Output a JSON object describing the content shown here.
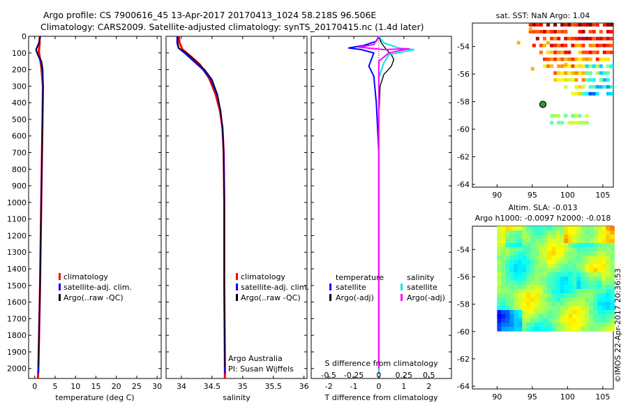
{
  "header": {
    "line1": "Argo profile: CS 7900616_45 13-Apr-2017 20170413_1024 58.218S 96.506E",
    "line2": "Climatology: CARS2009. Satellite-adjusted climatology: synTS_20170415.nc (1.4d later)"
  },
  "depth_ticks": [
    0,
    100,
    200,
    300,
    400,
    500,
    600,
    700,
    800,
    900,
    1000,
    1100,
    1200,
    1300,
    1400,
    1500,
    1600,
    1700,
    1800,
    1900,
    2000
  ],
  "colors": {
    "climatology": "#ff0000",
    "satellite": "#0000ff",
    "argo": "#000000",
    "sal_satellite": "#00e5e5",
    "sal_argo": "#ff00ff"
  },
  "chart_data": [
    {
      "type": "line",
      "xlabel": "temperature (deg C)",
      "xlim": [
        -1.5,
        31
      ],
      "ylim": [
        2060,
        0
      ],
      "xticks": [
        0,
        5,
        10,
        15,
        20,
        25,
        30
      ],
      "legend": [
        "climatology",
        "satellite-adj. clim.",
        "Argo(..raw -QC)"
      ],
      "series": [
        {
          "name": "climatology",
          "points": [
            [
              1.2,
              0
            ],
            [
              1.2,
              50
            ],
            [
              1.0,
              90
            ],
            [
              1.6,
              180
            ],
            [
              2.0,
              300
            ],
            [
              1.9,
              500
            ],
            [
              1.6,
              1000
            ],
            [
              1.3,
              1500
            ],
            [
              0.9,
              2000
            ],
            [
              0.8,
              2060
            ]
          ]
        },
        {
          "name": "satellite-adj. clim.",
          "points": [
            [
              1.4,
              0
            ],
            [
              1.0,
              40
            ],
            [
              0.3,
              80
            ],
            [
              0.7,
              110
            ],
            [
              1.5,
              150
            ],
            [
              1.9,
              220
            ],
            [
              2.0,
              300
            ],
            [
              1.9,
              500
            ],
            [
              1.6,
              1000
            ],
            [
              1.3,
              1500
            ],
            [
              0.9,
              2000
            ],
            [
              0.9,
              2030
            ]
          ]
        },
        {
          "name": "Argo(..raw -QC)",
          "points": [
            [
              1.3,
              0
            ],
            [
              1.1,
              40
            ],
            [
              0.4,
              80
            ],
            [
              0.8,
              110
            ],
            [
              1.7,
              150
            ],
            [
              2.0,
              200
            ],
            [
              2.1,
              300
            ],
            [
              1.9,
              500
            ],
            [
              1.6,
              1000
            ],
            [
              1.3,
              1500
            ],
            [
              0.9,
              1990
            ]
          ]
        }
      ]
    },
    {
      "type": "line",
      "xlabel": "salinity",
      "xlim": [
        33.75,
        36.05
      ],
      "ylim": [
        2060,
        0
      ],
      "xticks": [
        34,
        34.5,
        35,
        35.5,
        36
      ],
      "legend": [
        "climatology",
        "satellite-adj. clim.",
        "Argo(..raw -QC)"
      ],
      "annotation": [
        "Argo Australia",
        "PI: Susan Wijffels"
      ],
      "series": [
        {
          "name": "climatology",
          "points": [
            [
              33.96,
              0
            ],
            [
              33.97,
              40
            ],
            [
              34.02,
              80
            ],
            [
              34.15,
              120
            ],
            [
              34.3,
              170
            ],
            [
              34.45,
              250
            ],
            [
              34.56,
              350
            ],
            [
              34.63,
              450
            ],
            [
              34.67,
              550
            ],
            [
              34.69,
              700
            ],
            [
              34.7,
              1000
            ],
            [
              34.7,
              1500
            ],
            [
              34.71,
              2000
            ],
            [
              34.71,
              2060
            ]
          ]
        },
        {
          "name": "satellite-adj. clim.",
          "points": [
            [
              33.93,
              0
            ],
            [
              33.93,
              40
            ],
            [
              33.95,
              70
            ],
            [
              34.05,
              100
            ],
            [
              34.2,
              150
            ],
            [
              34.35,
              200
            ],
            [
              34.48,
              260
            ],
            [
              34.58,
              350
            ],
            [
              34.64,
              450
            ],
            [
              34.67,
              550
            ],
            [
              34.69,
              700
            ],
            [
              34.7,
              1000
            ],
            [
              34.7,
              1500
            ],
            [
              34.71,
              2000
            ],
            [
              34.71,
              2030
            ]
          ]
        },
        {
          "name": "Argo(..raw -QC)",
          "points": [
            [
              33.94,
              0
            ],
            [
              33.94,
              40
            ],
            [
              33.96,
              70
            ],
            [
              34.08,
              100
            ],
            [
              34.24,
              150
            ],
            [
              34.38,
              200
            ],
            [
              34.5,
              260
            ],
            [
              34.59,
              350
            ],
            [
              34.64,
              450
            ],
            [
              34.68,
              600
            ],
            [
              34.7,
              1000
            ],
            [
              34.7,
              1500
            ],
            [
              34.71,
              1990
            ]
          ]
        }
      ]
    },
    {
      "type": "line",
      "xlabel": "T difference from climatology",
      "xlabel_top": "S difference from climatology",
      "xlim": [
        -2.7,
        2.9
      ],
      "ylim": [
        2060,
        0
      ],
      "xticks": [
        -2,
        -1,
        0,
        1,
        2
      ],
      "xticks_top": [
        "-0.5",
        "-0.25",
        "0",
        "0.25",
        "0.5"
      ],
      "legend_left_title": "temperature",
      "legend_right_title": "salinity",
      "legend_left": [
        "satellite",
        "Argo(-adj)"
      ],
      "legend_right": [
        "satellite",
        "Argo(-adj)"
      ],
      "series": [
        {
          "name": "T satellite",
          "points": [
            [
              0,
              0
            ],
            [
              -0.1,
              30
            ],
            [
              -0.6,
              55
            ],
            [
              -1.2,
              70
            ],
            [
              -0.7,
              80
            ],
            [
              -0.2,
              100
            ],
            [
              -0.3,
              140
            ],
            [
              -0.4,
              180
            ],
            [
              -0.2,
              240
            ],
            [
              -0.1,
              400
            ],
            [
              0,
              700
            ],
            [
              0,
              2030
            ]
          ]
        },
        {
          "name": "T Argo(-adj)",
          "points": [
            [
              0,
              0
            ],
            [
              0.1,
              40
            ],
            [
              0.3,
              80
            ],
            [
              0.5,
              110
            ],
            [
              0.6,
              140
            ],
            [
              0.5,
              180
            ],
            [
              0.2,
              230
            ],
            [
              0.05,
              300
            ],
            [
              0,
              500
            ],
            [
              0,
              2000
            ]
          ]
        },
        {
          "name": "S satellite",
          "points": [
            [
              0,
              0
            ],
            [
              0.05,
              40
            ],
            [
              0.2,
              70
            ],
            [
              0.35,
              80
            ],
            [
              0.1,
              110
            ],
            [
              0.05,
              160
            ],
            [
              0,
              250
            ],
            [
              0,
              2030
            ]
          ]
        },
        {
          "name": "S Argo(-adj)",
          "points": [
            [
              0,
              0
            ],
            [
              -0.05,
              50
            ],
            [
              -0.2,
              65
            ],
            [
              0.05,
              80
            ],
            [
              0.3,
              75
            ],
            [
              0.1,
              100
            ],
            [
              0,
              150
            ],
            [
              0,
              2000
            ]
          ]
        }
      ]
    }
  ],
  "map_sst": {
    "title": "sat. SST: NaN Argo: 1.04",
    "xticks": [
      90,
      95,
      100,
      105
    ],
    "yticks": [
      -54,
      -56,
      -58,
      -60,
      -62,
      -64
    ],
    "xlim": [
      86.5,
      106.5
    ],
    "ylim": [
      -64.2,
      -52.3
    ],
    "argo_marker": {
      "lon": 96.5,
      "lat": -58.2
    }
  },
  "map_sla": {
    "title1": "Altim. SLA: -0.013",
    "title2": "Argo h1000: -0.0097 h2000: -0.018",
    "xticks": [
      90,
      95,
      100,
      105
    ],
    "yticks": [
      -54,
      -56,
      -58,
      -60,
      -62,
      -64
    ],
    "xlim": [
      86.5,
      106.5
    ],
    "ylim": [
      -64.2,
      -52.3
    ]
  },
  "watermark": "©IMOS 22-Apr-2017 20:36:53"
}
